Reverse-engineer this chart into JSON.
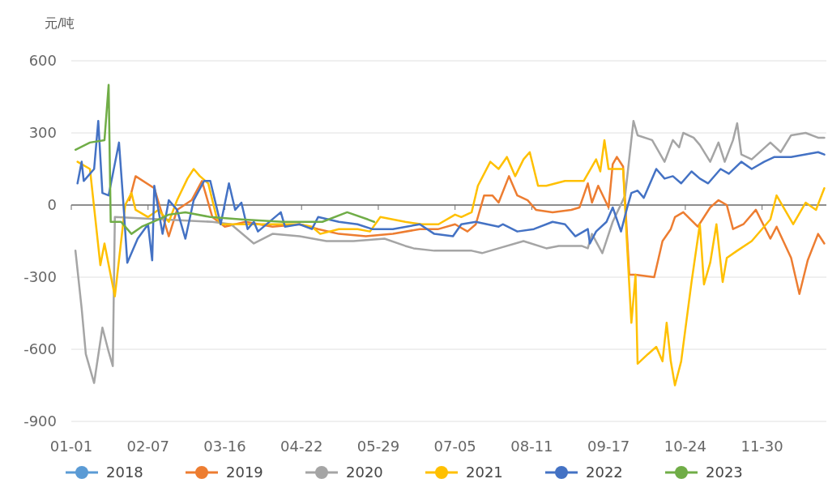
{
  "chart_data": {
    "type": "line",
    "ylabel": "元/吨",
    "xlim": [
      "--01-01",
      "--12-31"
    ],
    "xticks": [
      {
        "value": "--01-01",
        "label": "01-01"
      },
      {
        "value": "--02-07",
        "label": "02-07"
      },
      {
        "value": "--03-16",
        "label": "03-16"
      },
      {
        "value": "--04-22",
        "label": "04-22"
      },
      {
        "value": "--05-29",
        "label": "05-29"
      },
      {
        "value": "--07-05",
        "label": "07-05"
      },
      {
        "value": "--08-11",
        "label": "08-11"
      },
      {
        "value": "--09-17",
        "label": "09-17"
      },
      {
        "value": "--10-24",
        "label": "10-24"
      },
      {
        "value": "--11-30",
        "label": "11-30"
      }
    ],
    "ylim": [
      -900,
      600
    ],
    "yticks": [
      -900,
      -600,
      -300,
      0,
      300,
      600
    ],
    "grid": "y",
    "legend": "bottom",
    "marker": "none",
    "line_style": "solid",
    "series": [
      {
        "name": "2018",
        "color": "#5b9bd5"
      },
      {
        "name": "2019",
        "color": "#ed7d31",
        "x": [
          "--01-29",
          "--02-01",
          "--02-10",
          "--02-17",
          "--02-21",
          "--02-28",
          "--03-05",
          "--03-10",
          "--03-16",
          "--03-26",
          "--04-08",
          "--04-21",
          "--04-30",
          "--05-10",
          "--05-23",
          "--06-05",
          "--06-18",
          "--06-27",
          "--07-05",
          "--07-11",
          "--07-15",
          "--07-19",
          "--07-23",
          "--07-26",
          "--07-31",
          "--08-04",
          "--08-09",
          "--08-13",
          "--08-21",
          "--08-30",
          "--09-03",
          "--09-07",
          "--09-09",
          "--09-12",
          "--09-17",
          "--09-19",
          "--09-21",
          "--09-24",
          "--09-27",
          "--09-30",
          "--10-09",
          "--10-13",
          "--10-17",
          "--10-19",
          "--10-23",
          "--10-30",
          "--11-05",
          "--11-09",
          "--11-13",
          "--11-16",
          "--11-21",
          "--11-27",
          "--12-04",
          "--12-07",
          "--12-14",
          "--12-18",
          "--12-22",
          "--12-27",
          "--12-30"
        ],
        "values": [
          20,
          120,
          70,
          -130,
          -20,
          20,
          100,
          -50,
          -90,
          -70,
          -90,
          -80,
          -100,
          -120,
          -130,
          -120,
          -100,
          -100,
          -80,
          -110,
          -80,
          40,
          40,
          10,
          120,
          40,
          20,
          -20,
          -30,
          -20,
          -10,
          90,
          10,
          80,
          -10,
          170,
          200,
          160,
          -290,
          -290,
          -300,
          -150,
          -100,
          -50,
          -30,
          -90,
          -10,
          20,
          0,
          -100,
          -80,
          -20,
          -140,
          -90,
          -220,
          -370,
          -230,
          -120,
          -160
        ]
      },
      {
        "name": "2020",
        "color": "#a5a5a5",
        "x": [
          "--01-03",
          "--01-06",
          "--01-08",
          "--01-12",
          "--01-16",
          "--01-19",
          "--01-21",
          "--01-22",
          "--02-14",
          "--03-10",
          "--03-19",
          "--03-30",
          "--04-08",
          "--04-21",
          "--05-04",
          "--05-17",
          "--06-01",
          "--06-11",
          "--06-15",
          "--06-25",
          "--07-08",
          "--07-13",
          "--07-18",
          "--07-26",
          "--08-07",
          "--08-18",
          "--08-24",
          "--09-04",
          "--09-07",
          "--09-09",
          "--09-14",
          "--09-19",
          "--09-25",
          "--09-29",
          "--10-01",
          "--10-08",
          "--10-14",
          "--10-18",
          "--10-21",
          "--10-23",
          "--10-28",
          "--10-31",
          "--11-05",
          "--11-09",
          "--11-12",
          "--11-16",
          "--11-18",
          "--11-20",
          "--11-25",
          "--12-04",
          "--12-09",
          "--12-14",
          "--12-21",
          "--12-27",
          "--12-30"
        ],
        "values": [
          -190,
          -430,
          -620,
          -740,
          -510,
          -610,
          -670,
          -50,
          -60,
          -70,
          -80,
          -160,
          -120,
          -130,
          -150,
          -150,
          -140,
          -170,
          -180,
          -190,
          -190,
          -190,
          -200,
          -180,
          -150,
          -180,
          -170,
          -170,
          -180,
          -120,
          -200,
          -70,
          40,
          350,
          290,
          270,
          180,
          270,
          240,
          300,
          280,
          250,
          180,
          260,
          180,
          270,
          340,
          210,
          190,
          260,
          220,
          290,
          300,
          280,
          280
        ]
      },
      {
        "name": "2021",
        "color": "#ffc000",
        "x": [
          "--01-04",
          "--01-10",
          "--01-15",
          "--01-17",
          "--01-22",
          "--01-27",
          "--01-30",
          "--02-01",
          "--02-07",
          "--02-12",
          "--02-17",
          "--02-21",
          "--02-26",
          "--03-01",
          "--03-04",
          "--03-08",
          "--03-12",
          "--03-14",
          "--04-21",
          "--04-27",
          "--05-01",
          "--05-10",
          "--05-19",
          "--05-25",
          "--05-30",
          "--06-05",
          "--06-11",
          "--06-19",
          "--06-27",
          "--07-05",
          "--07-08",
          "--07-13",
          "--07-16",
          "--07-22",
          "--07-26",
          "--07-30",
          "--08-03",
          "--08-07",
          "--08-10",
          "--08-14",
          "--08-18",
          "--08-27",
          "--09-05",
          "--09-11",
          "--09-13",
          "--09-15",
          "--09-17",
          "--09-24",
          "--09-26",
          "--09-28",
          "--09-30",
          "--10-01",
          "--10-06",
          "--10-10",
          "--10-13",
          "--10-15",
          "--10-17",
          "--10-19",
          "--10-22",
          "--10-27",
          "--10-31",
          "--11-02",
          "--11-05",
          "--11-08",
          "--11-11",
          "--11-13",
          "--11-18",
          "--11-25",
          "--12-04",
          "--12-07",
          "--12-11",
          "--12-15",
          "--12-21",
          "--12-26",
          "--12-30"
        ],
        "values": [
          180,
          150,
          -250,
          -160,
          -380,
          0,
          50,
          -20,
          -50,
          -20,
          -70,
          20,
          110,
          150,
          120,
          90,
          -50,
          -80,
          -80,
          -90,
          -120,
          -100,
          -100,
          -110,
          -50,
          -60,
          -70,
          -80,
          -80,
          -40,
          -50,
          -30,
          80,
          180,
          150,
          200,
          120,
          190,
          220,
          80,
          80,
          100,
          100,
          190,
          140,
          270,
          150,
          150,
          -180,
          -490,
          -290,
          -660,
          -620,
          -590,
          -650,
          -490,
          -650,
          -750,
          -650,
          -320,
          -80,
          -330,
          -240,
          -80,
          -320,
          -220,
          -190,
          -150,
          -60,
          40,
          -20,
          -80,
          10,
          -20,
          70
        ]
      },
      {
        "name": "2022",
        "color": "#4472c4",
        "x": [
          "--01-04",
          "--01-06",
          "--01-07",
          "--01-12",
          "--01-14",
          "--01-16",
          "--01-19",
          "--01-24",
          "--01-26",
          "--01-28",
          "--02-02",
          "--02-07",
          "--02-09",
          "--02-10",
          "--02-14",
          "--02-17",
          "--02-21",
          "--02-25",
          "--03-01",
          "--03-06",
          "--03-09",
          "--03-14",
          "--03-18",
          "--03-21",
          "--03-24",
          "--03-27",
          "--03-30",
          "--04-01",
          "--04-12",
          "--04-14",
          "--04-21",
          "--04-27",
          "--04-30",
          "--05-10",
          "--05-19",
          "--05-26",
          "--06-05",
          "--06-18",
          "--06-25",
          "--07-04",
          "--07-08",
          "--07-15",
          "--07-26",
          "--07-28",
          "--08-04",
          "--08-12",
          "--08-21",
          "--08-27",
          "--09-01",
          "--09-07",
          "--09-08",
          "--09-11",
          "--09-16",
          "--09-19",
          "--09-23",
          "--09-26",
          "--09-28",
          "--10-01",
          "--10-04",
          "--10-10",
          "--10-14",
          "--10-18",
          "--10-22",
          "--10-27",
          "--10-31",
          "--11-04",
          "--11-10",
          "--11-14",
          "--11-20",
          "--11-25",
          "--12-01",
          "--12-06",
          "--12-14",
          "--12-27",
          "--12-30"
        ],
        "values": [
          90,
          180,
          100,
          150,
          350,
          50,
          40,
          260,
          20,
          -240,
          -140,
          -80,
          -230,
          80,
          -120,
          20,
          -20,
          -140,
          20,
          100,
          100,
          -80,
          90,
          -20,
          10,
          -100,
          -70,
          -110,
          -30,
          -90,
          -80,
          -100,
          -50,
          -70,
          -80,
          -100,
          -100,
          -80,
          -120,
          -130,
          -80,
          -70,
          -90,
          -80,
          -110,
          -100,
          -70,
          -80,
          -130,
          -100,
          -160,
          -110,
          -70,
          -10,
          -110,
          -10,
          50,
          60,
          30,
          150,
          110,
          120,
          90,
          140,
          110,
          90,
          150,
          130,
          180,
          150,
          180,
          200,
          200,
          220,
          210
        ]
      },
      {
        "name": "2023",
        "color": "#70ad47",
        "x": [
          "--01-03",
          "--01-10",
          "--01-17",
          "--01-19",
          "--01-20",
          "--01-25",
          "--01-30",
          "--02-04",
          "--02-12",
          "--02-17",
          "--02-25",
          "--03-09",
          "--03-24",
          "--04-13",
          "--05-02",
          "--05-14",
          "--05-24",
          "--05-27"
        ],
        "values": [
          230,
          260,
          270,
          500,
          -70,
          -70,
          -120,
          -90,
          -60,
          -40,
          -30,
          -50,
          -60,
          -70,
          -70,
          -30,
          -60,
          -70
        ]
      }
    ]
  }
}
